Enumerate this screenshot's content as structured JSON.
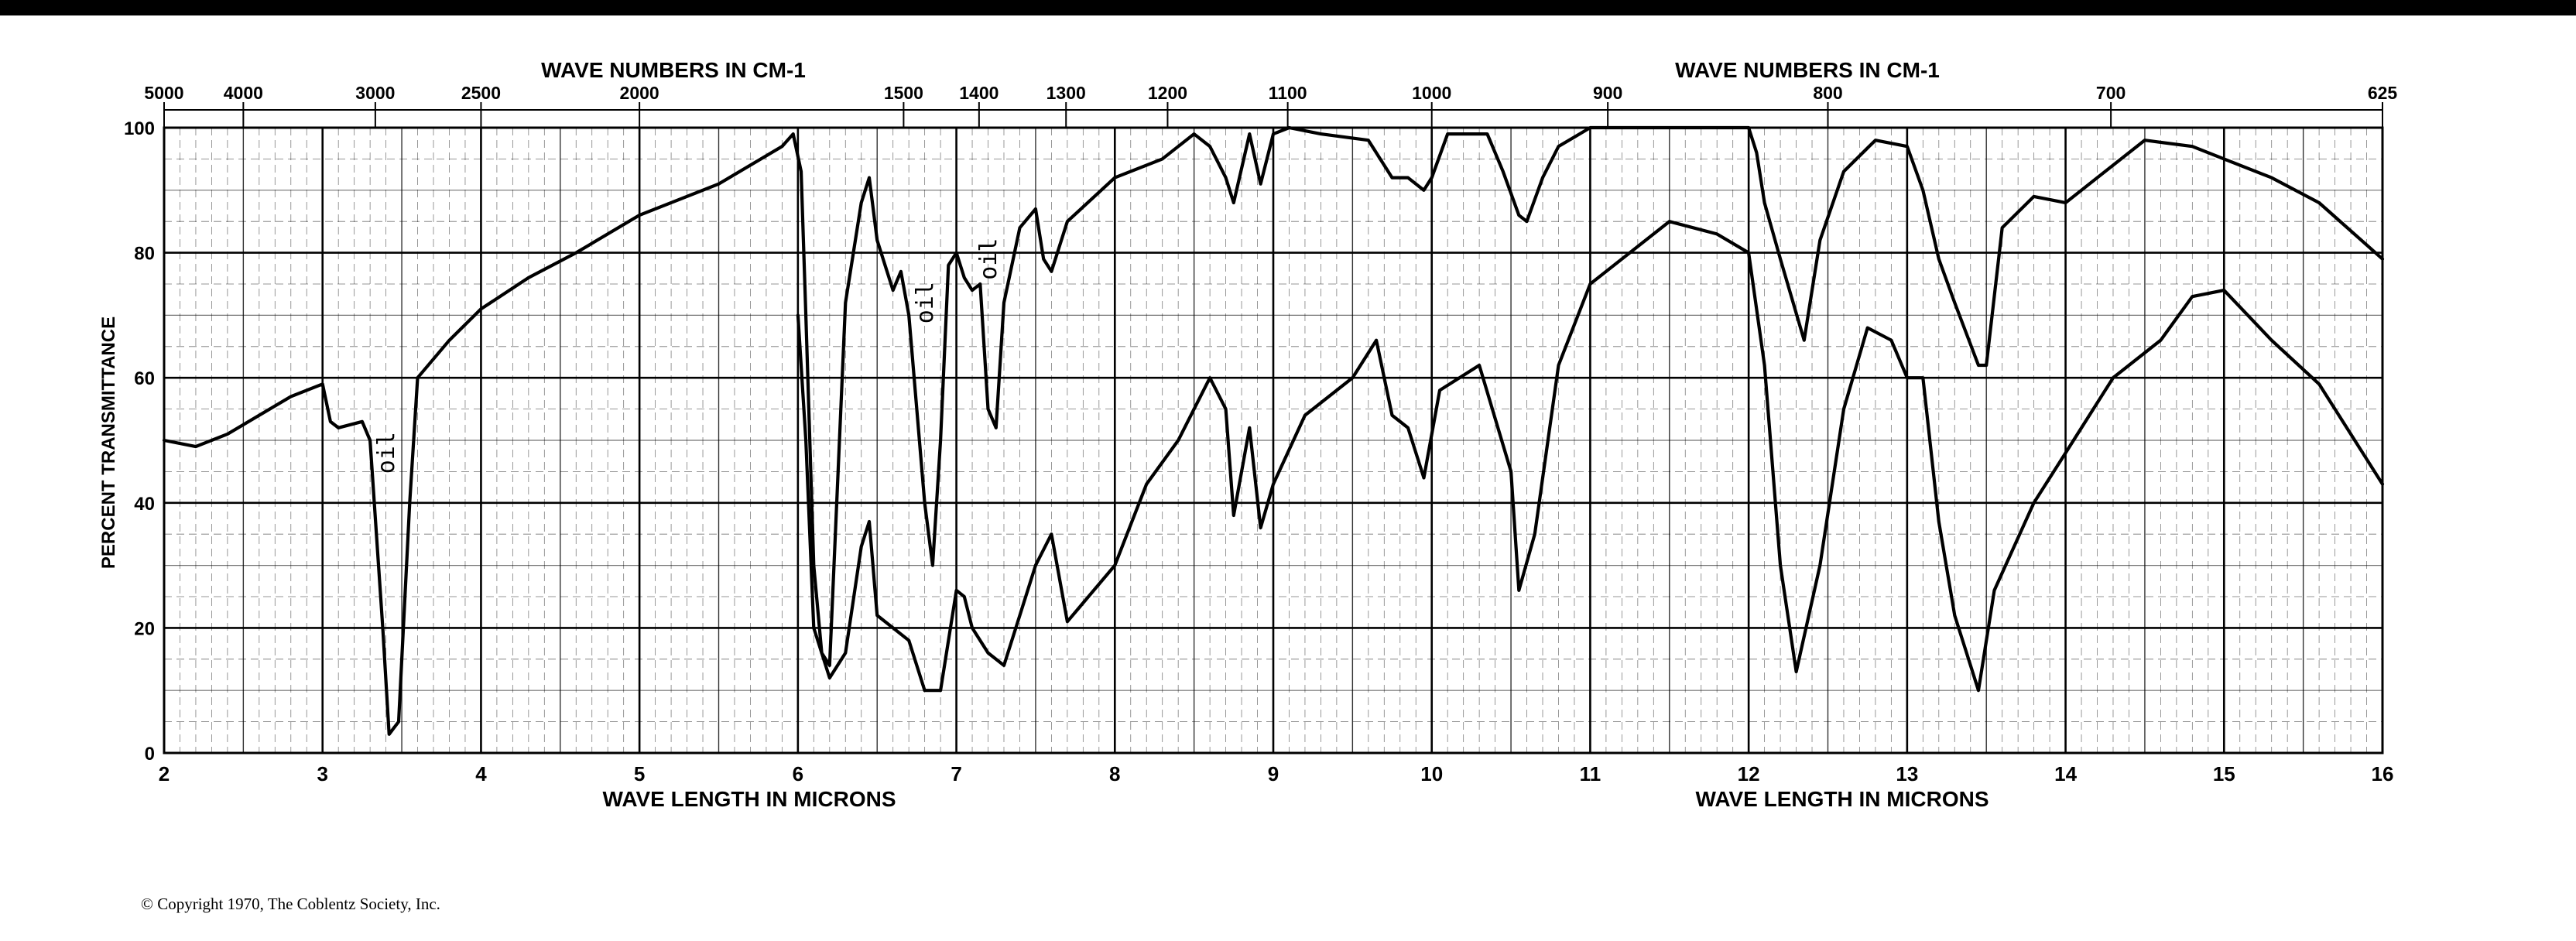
{
  "chart_data": {
    "type": "line",
    "title_top_left": "WAVE NUMBERS IN CM-1",
    "title_top_right": "WAVE NUMBERS IN CM-1",
    "xlabel_left": "WAVE LENGTH IN MICRONS",
    "xlabel_right": "WAVE LENGTH IN MICRONS",
    "ylabel": "PERCENT TRANSMITTANCE",
    "xlim": [
      2,
      16
    ],
    "ylim": [
      0,
      100
    ],
    "grid": true,
    "x_ticks": [
      {
        "v": 2,
        "label": "2"
      },
      {
        "v": 3,
        "label": "3"
      },
      {
        "v": 4,
        "label": "4"
      },
      {
        "v": 5,
        "label": "5"
      },
      {
        "v": 6,
        "label": "6"
      },
      {
        "v": 7,
        "label": "7"
      },
      {
        "v": 8,
        "label": "8"
      },
      {
        "v": 9,
        "label": "9"
      },
      {
        "v": 10,
        "label": "10"
      },
      {
        "v": 11,
        "label": "11"
      },
      {
        "v": 12,
        "label": "12"
      },
      {
        "v": 13,
        "label": "13"
      },
      {
        "v": 14,
        "label": "14"
      },
      {
        "v": 15,
        "label": "15"
      },
      {
        "v": 16,
        "label": "16"
      }
    ],
    "y_ticks": [
      {
        "v": 0,
        "label": "0"
      },
      {
        "v": 20,
        "label": "20"
      },
      {
        "v": 40,
        "label": "40"
      },
      {
        "v": 60,
        "label": "60"
      },
      {
        "v": 80,
        "label": "80"
      },
      {
        "v": 100,
        "label": "100"
      }
    ],
    "wavenumber_ticks": [
      {
        "v": 2.0,
        "label": "5000"
      },
      {
        "v": 2.5,
        "label": "4000"
      },
      {
        "v": 3.333,
        "label": "3000"
      },
      {
        "v": 4.0,
        "label": "2500"
      },
      {
        "v": 5.0,
        "label": "2000"
      },
      {
        "v": 6.667,
        "label": "1500"
      },
      {
        "v": 7.143,
        "label": "1400"
      },
      {
        "v": 7.692,
        "label": "1300"
      },
      {
        "v": 8.333,
        "label": "1200"
      },
      {
        "v": 9.091,
        "label": "1100"
      },
      {
        "v": 10.0,
        "label": "1000"
      },
      {
        "v": 11.111,
        "label": "900"
      },
      {
        "v": 12.5,
        "label": "800"
      },
      {
        "v": 14.286,
        "label": "700"
      },
      {
        "v": 16.0,
        "label": "625"
      }
    ],
    "annotations": [
      {
        "text": "oil",
        "x": 3.45,
        "y": 48
      },
      {
        "text": "oil",
        "x": 6.85,
        "y": 72
      },
      {
        "text": "oil",
        "x": 7.25,
        "y": 79
      }
    ],
    "series": [
      {
        "x": [
          2.0,
          2.2,
          2.4,
          2.6,
          2.8,
          3.0,
          3.05,
          3.1,
          3.25,
          3.3,
          3.38,
          3.42,
          3.48,
          3.55,
          3.6,
          3.8,
          4.0,
          4.3,
          4.6,
          5.0,
          5.5,
          5.9,
          5.97,
          6.02,
          6.05,
          6.1,
          6.15,
          6.2,
          6.3,
          6.4,
          6.45,
          6.5,
          6.6,
          6.65,
          6.7,
          6.8,
          6.85,
          6.9,
          6.95,
          7.0,
          7.05,
          7.1,
          7.15,
          7.2,
          7.25,
          7.3,
          7.4,
          7.5,
          7.55,
          7.6,
          7.7,
          8.0,
          8.3,
          8.5,
          8.6,
          8.7,
          8.75,
          8.85,
          8.92,
          9.0,
          9.1,
          9.3,
          9.6,
          9.75,
          9.85,
          9.95,
          10.0,
          10.1,
          10.35,
          10.45,
          10.55,
          10.6,
          10.7,
          10.8,
          11.0,
          11.5,
          12.0,
          12.05,
          12.1,
          12.2,
          12.35,
          12.45,
          12.6,
          12.8,
          13.0,
          13.1,
          13.2,
          13.3,
          13.45,
          13.5,
          13.6,
          13.8,
          14.0,
          14.2,
          14.5,
          14.8,
          15.0,
          15.3,
          15.6,
          16.0
        ],
        "values": [
          50,
          49,
          51,
          54,
          57,
          59,
          53,
          52,
          53,
          50,
          20,
          3,
          5,
          40,
          60,
          66,
          71,
          76,
          80,
          86,
          91,
          97,
          99,
          93,
          70,
          30,
          16,
          14,
          72,
          88,
          92,
          82,
          74,
          77,
          70,
          40,
          30,
          50,
          78,
          80,
          76,
          74,
          75,
          55,
          52,
          72,
          84,
          87,
          79,
          77,
          85,
          92,
          95,
          99,
          97,
          92,
          88,
          99,
          91,
          99,
          100,
          99,
          98,
          92,
          92,
          90,
          92,
          99,
          99,
          93,
          86,
          85,
          92,
          97,
          100,
          100,
          100,
          96,
          88,
          79,
          66,
          82,
          93,
          98,
          97,
          90,
          79,
          72,
          62,
          62,
          84,
          89,
          88,
          92,
          98,
          97,
          95,
          92,
          88,
          79
        ]
      },
      {
        "x": [
          6.0,
          6.05,
          6.1,
          6.2,
          6.3,
          6.4,
          6.45,
          6.5,
          6.6,
          6.7,
          6.8,
          6.9,
          7.0,
          7.05,
          7.1,
          7.2,
          7.3,
          7.4,
          7.5,
          7.6,
          7.7,
          8.0,
          8.2,
          8.4,
          8.6,
          8.7,
          8.75,
          8.85,
          8.92,
          9.0,
          9.2,
          9.5,
          9.65,
          9.75,
          9.85,
          9.95,
          10.05,
          10.3,
          10.5,
          10.55,
          10.65,
          10.8,
          11.0,
          11.5,
          11.8,
          12.0,
          12.1,
          12.2,
          12.3,
          12.45,
          12.6,
          12.75,
          12.9,
          13.0,
          13.1,
          13.2,
          13.3,
          13.45,
          13.55,
          13.8,
          14.0,
          14.3,
          14.6,
          14.8,
          15.0,
          15.3,
          15.6,
          16.0
        ],
        "values": [
          70,
          50,
          20,
          12,
          16,
          33,
          37,
          22,
          20,
          18,
          10,
          10,
          26,
          25,
          20,
          16,
          14,
          22,
          30,
          35,
          21,
          30,
          43,
          50,
          60,
          55,
          38,
          52,
          36,
          43,
          54,
          60,
          66,
          54,
          52,
          44,
          58,
          62,
          45,
          26,
          35,
          62,
          75,
          85,
          83,
          80,
          62,
          30,
          13,
          30,
          55,
          68,
          66,
          60,
          60,
          37,
          22,
          10,
          26,
          40,
          48,
          60,
          66,
          73,
          74,
          66,
          59,
          43
        ]
      }
    ]
  },
  "footer": {
    "copyright": "© Copyright 1970, The Coblentz Society, Inc."
  }
}
